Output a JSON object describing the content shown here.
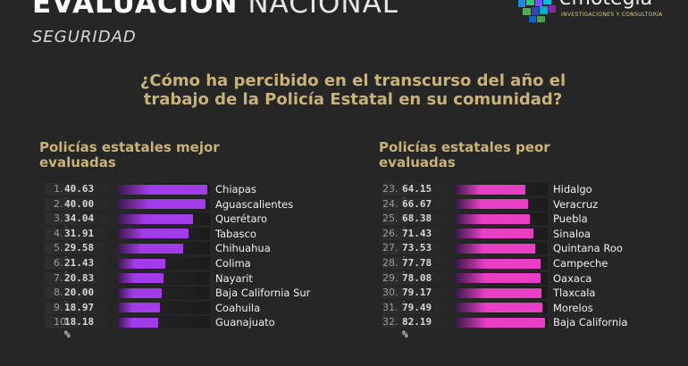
{
  "header": {
    "title_bold": "EVALUACIÓN",
    "title_light": "NACIONAL",
    "subtitle": "SEGURIDAD"
  },
  "logo": {
    "name": "emotegia",
    "tagline": "INVESTIGACIONES Y CONSULTORÍA"
  },
  "question": "¿Cómo ha percibido en el transcurso del año el trabajo de la Policía Estatal en su comunidad?",
  "colors": {
    "background": "#262626",
    "gold": "#c9b27a",
    "best_bar": "#a23be8",
    "worst_bar": "#e83fc4"
  },
  "chart_data": [
    {
      "type": "bar",
      "orientation": "horizontal",
      "title": "Policías estatales mejor evaluadas",
      "ranks": [
        "1.",
        "2.",
        "3.",
        "4.",
        "5.",
        "6.",
        "7.",
        "8.",
        "9.",
        "10."
      ],
      "categories": [
        "Chiapas",
        "Aguascalientes",
        "Querétaro",
        "Tabasco",
        "Chihuahua",
        "Colima",
        "Nayarit",
        "Baja California Sur",
        "Coahuila",
        "Guanajuato"
      ],
      "values": [
        40.63,
        40.0,
        34.04,
        31.91,
        29.58,
        21.43,
        20.83,
        20.0,
        18.97,
        18.18
      ],
      "value_labels": [
        "40.63 %",
        "40.00 %",
        "34.04 %",
        "31.91 %",
        "29.58 %",
        "21.43 %",
        "20.83 %",
        "20.00 %",
        "18.97 %",
        "18.18 %"
      ],
      "unit": "%"
    },
    {
      "type": "bar",
      "orientation": "horizontal",
      "title": "Policías estatales peor evaluadas",
      "ranks": [
        "23.",
        "24.",
        "25.",
        "26.",
        "27.",
        "28.",
        "29.",
        "30.",
        "31.",
        "32."
      ],
      "categories": [
        "Hidalgo",
        "Veracruz",
        "Puebla",
        "Sinaloa",
        "Quintana Roo",
        "Campeche",
        "Oaxaca",
        "Tlaxcala",
        "Morelos",
        "Baja California"
      ],
      "values": [
        64.15,
        66.67,
        68.38,
        71.43,
        73.53,
        77.78,
        78.08,
        79.17,
        79.49,
        82.19
      ],
      "value_labels": [
        "64.15 %",
        "66.67 %",
        "68.38 %",
        "71.43 %",
        "73.53 %",
        "77.78 %",
        "78.08 %",
        "79.17 %",
        "79.49 %",
        "82.19 %"
      ],
      "unit": "%"
    }
  ]
}
